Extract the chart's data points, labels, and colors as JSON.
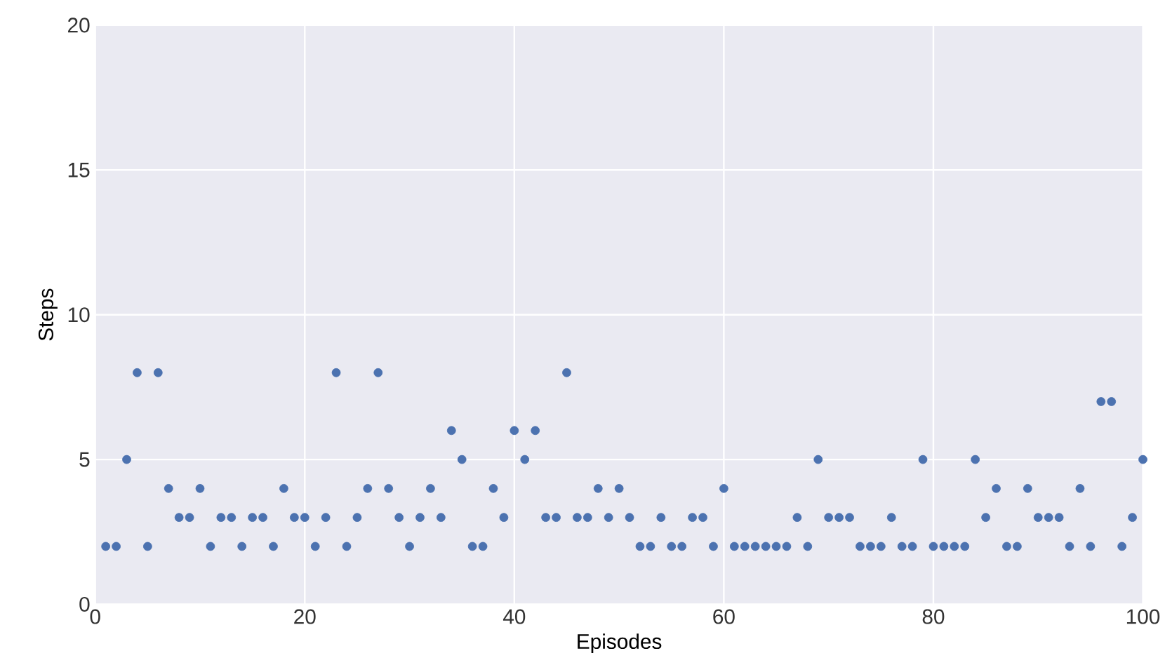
{
  "chart_data": {
    "type": "scatter",
    "xlabel": "Episodes",
    "ylabel": "Steps",
    "x": [
      1,
      2,
      3,
      4,
      5,
      6,
      7,
      8,
      9,
      10,
      11,
      12,
      13,
      14,
      15,
      16,
      17,
      18,
      19,
      20,
      21,
      22,
      23,
      24,
      25,
      26,
      27,
      28,
      29,
      30,
      31,
      32,
      33,
      34,
      35,
      36,
      37,
      38,
      39,
      40,
      41,
      42,
      43,
      44,
      45,
      46,
      47,
      48,
      49,
      50,
      51,
      52,
      53,
      54,
      55,
      56,
      57,
      58,
      59,
      60,
      61,
      62,
      63,
      64,
      65,
      66,
      67,
      68,
      69,
      70,
      71,
      72,
      73,
      74,
      75,
      76,
      77,
      78,
      79,
      80,
      81,
      82,
      83,
      84,
      85,
      86,
      87,
      88,
      89,
      90,
      91,
      92,
      93,
      94,
      95,
      96,
      97,
      98,
      99,
      100
    ],
    "series": [
      {
        "color": "#4c72b0",
        "values": [
          2,
          2,
          5,
          8,
          2,
          8,
          4,
          3,
          3,
          4,
          2,
          3,
          3,
          2,
          3,
          3,
          2,
          4,
          3,
          3,
          2,
          3,
          8,
          2,
          3,
          4,
          8,
          4,
          3,
          2,
          3,
          4,
          3,
          6,
          5,
          2,
          2,
          4,
          3,
          6,
          5,
          6,
          3,
          3,
          8,
          3,
          3,
          4,
          3,
          4,
          3,
          2,
          2,
          3,
          2,
          2,
          3,
          3,
          2,
          4,
          2,
          2,
          2,
          2,
          2,
          2,
          3,
          2,
          5,
          3,
          3,
          3,
          2,
          2,
          2,
          3,
          2,
          2,
          5,
          2,
          2,
          2,
          2,
          5,
          3,
          4,
          2,
          2,
          4,
          3,
          3,
          3,
          2,
          4,
          2,
          7,
          7,
          2,
          3,
          5
        ]
      }
    ],
    "xlim": [
      0,
      100
    ],
    "ylim": [
      0,
      20
    ],
    "xticks": [
      0,
      20,
      40,
      60,
      80,
      100
    ],
    "yticks": [
      0,
      5,
      10,
      15,
      20
    ],
    "grid": true,
    "marker": "circle"
  }
}
